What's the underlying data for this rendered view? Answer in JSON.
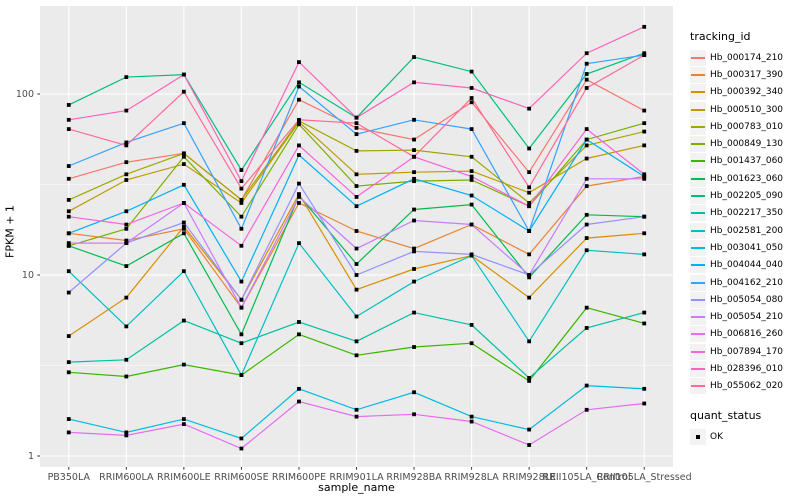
{
  "panel": {
    "background": "#EBEBEB",
    "gridline_color": "#FFFFFF",
    "tick_color": "#333333",
    "tick_label_color": "#4D4D4D",
    "legend_key_fill": "#F2F2F2",
    "point_color": "#000000"
  },
  "chart_data": {
    "type": "line",
    "title": "",
    "xlabel": "sample_name",
    "ylabel": "FPKM + 1",
    "y_scale": "log10",
    "y_ticks": [
      1,
      10,
      100
    ],
    "y_minor_ticks": [
      3.162,
      31.62,
      316
    ],
    "ylim": [
      1,
      320
    ],
    "grid": "white major+minor on grey panel",
    "legend_position": "right",
    "legend_title": "tracking_id",
    "quant_legend": {
      "title": "quant_status",
      "items": [
        {
          "label": "OK",
          "marker": "black-square"
        }
      ]
    },
    "point_marker": "black-square",
    "categories": [
      "PB350LA",
      "RRIM600LA",
      "RRIM600LE",
      "RRIM600SE",
      "RRIM600PE",
      "RRIM901LA",
      "RRIM928BA",
      "RRIM928LA",
      "RRIM928LE",
      "RRII105LA_Control",
      "RRII105LA_Stressed"
    ],
    "series": [
      {
        "name": "Hb_000174_210",
        "color": "#F8766D",
        "values": [
          34,
          42,
          47,
          26,
          93,
          65,
          56,
          90,
          37,
          120,
          81
        ]
      },
      {
        "name": "Hb_000317_390",
        "color": "#EA8331",
        "values": [
          17,
          15.5,
          18,
          6.6,
          25,
          17.5,
          14,
          19,
          13,
          31,
          35
        ]
      },
      {
        "name": "Hb_000392_340",
        "color": "#D89000",
        "values": [
          4.6,
          7.5,
          18.5,
          7.3,
          28,
          8.3,
          10.8,
          12.8,
          7.5,
          16,
          17
        ]
      },
      {
        "name": "Hb_000510_300",
        "color": "#C09B00",
        "values": [
          22.5,
          33.5,
          41,
          25,
          70,
          36,
          37,
          37.5,
          28.5,
          44,
          52
        ]
      },
      {
        "name": "Hb_000783_010",
        "color": "#A3A500",
        "values": [
          26,
          36,
          47,
          26,
          71,
          48.5,
          49,
          45,
          25,
          52,
          62
        ]
      },
      {
        "name": "Hb_000849_130",
        "color": "#7CAE00",
        "values": [
          14.5,
          18,
          45,
          21,
          68,
          31,
          33,
          33.5,
          24,
          56,
          69
        ]
      },
      {
        "name": "Hb_001437_060",
        "color": "#39B600",
        "values": [
          2.9,
          2.75,
          3.2,
          2.8,
          4.7,
          3.6,
          4.0,
          4.2,
          2.6,
          6.6,
          5.4
        ]
      },
      {
        "name": "Hb_001623_060",
        "color": "#00BB4E",
        "values": [
          14.5,
          11.2,
          17,
          4.7,
          27.5,
          11.5,
          23,
          24.5,
          9.7,
          21.5,
          21
        ]
      },
      {
        "name": "Hb_002205_090",
        "color": "#00BF7D",
        "values": [
          87,
          124,
          128,
          38,
          116,
          74,
          160,
          133,
          50,
          129,
          168
        ]
      },
      {
        "name": "Hb_002217_350",
        "color": "#00C1A3",
        "values": [
          3.3,
          3.4,
          5.6,
          4.2,
          5.5,
          4.3,
          6.2,
          5.3,
          2.7,
          5.1,
          6.2
        ]
      },
      {
        "name": "Hb_002581_200",
        "color": "#00BFC4",
        "values": [
          10.5,
          5.2,
          10.5,
          2.8,
          15,
          5.9,
          9.2,
          12.8,
          4.3,
          13.7,
          13
        ]
      },
      {
        "name": "Hb_003041_050",
        "color": "#00BAE0",
        "values": [
          1.6,
          1.35,
          1.6,
          1.25,
          2.35,
          1.8,
          2.25,
          1.65,
          1.4,
          2.45,
          2.35
        ]
      },
      {
        "name": "Hb_004044_040",
        "color": "#00B0F6",
        "values": [
          17,
          22.5,
          31.5,
          9.2,
          46,
          24,
          34,
          27.5,
          17.5,
          56,
          35
        ]
      },
      {
        "name": "Hb_004162_210",
        "color": "#35A2FF",
        "values": [
          40,
          54,
          69,
          18,
          110,
          60,
          72,
          64,
          17.5,
          147,
          164
        ]
      },
      {
        "name": "Hb_005054_080",
        "color": "#9590FF",
        "values": [
          8,
          15,
          19.5,
          7.3,
          32,
          10,
          13.5,
          13,
          10,
          19,
          21
        ]
      },
      {
        "name": "Hb_005054_210",
        "color": "#C77CFF",
        "values": [
          15,
          15,
          25,
          6.6,
          27,
          14,
          20,
          19,
          10,
          34,
          34
        ]
      },
      {
        "name": "Hb_006816_260",
        "color": "#E76BF3",
        "values": [
          1.35,
          1.3,
          1.5,
          1.1,
          2.0,
          1.65,
          1.7,
          1.55,
          1.15,
          1.8,
          1.95
        ]
      },
      {
        "name": "Hb_007894_170",
        "color": "#FA62DB",
        "values": [
          21,
          19,
          25,
          14.5,
          52,
          27,
          45,
          35,
          24,
          64,
          36
        ]
      },
      {
        "name": "Hb_028396_010",
        "color": "#FF62BC",
        "values": [
          72,
          81,
          128,
          33,
          150,
          74,
          116,
          108,
          83,
          168,
          235
        ]
      },
      {
        "name": "Hb_055062_020",
        "color": "#FF6A98",
        "values": [
          64,
          52,
          103,
          30,
          72,
          69,
          45,
          95,
          30.5,
          108,
          164
        ]
      }
    ]
  }
}
